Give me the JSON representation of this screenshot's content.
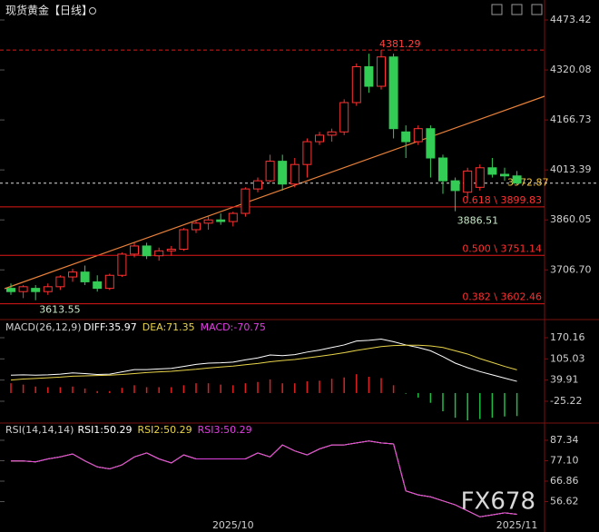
{
  "chart_data": [
    {
      "type": "candlestick",
      "title": "现货黄金【日线】",
      "categories": [
        null,
        null,
        null,
        null,
        null,
        null,
        null,
        null,
        null,
        null,
        null,
        null,
        null,
        null,
        null,
        null,
        null,
        null,
        "2025/10",
        null,
        null,
        null,
        null,
        null,
        null,
        null,
        null,
        null,
        null,
        null,
        null,
        null,
        null,
        null,
        null,
        null,
        null,
        null,
        null,
        null,
        null,
        "2025/11"
      ],
      "open": [
        3650,
        3640,
        3650,
        3640,
        3655,
        3685,
        3700,
        3670,
        3650,
        3690,
        3755,
        3780,
        3750,
        3765,
        3770,
        3830,
        3850,
        3860,
        3855,
        3880,
        3955,
        3980,
        4040,
        3970,
        4030,
        4100,
        4120,
        4130,
        4220,
        4330,
        4270,
        4360,
        4130,
        4100,
        4140,
        4050,
        3980,
        3945,
        3960,
        4020,
        4000,
        3995
      ],
      "high": [
        3665,
        3660,
        3660,
        3665,
        3690,
        3710,
        3720,
        3690,
        3695,
        3760,
        3790,
        3790,
        3775,
        3780,
        3835,
        3860,
        3870,
        3880,
        3885,
        3960,
        3990,
        4060,
        4060,
        4050,
        4110,
        4130,
        4140,
        4230,
        4340,
        4370,
        4381.29,
        4370,
        4150,
        4150,
        4150,
        4060,
        3990,
        4020,
        4030,
        4050,
        4020,
        4010
      ],
      "low": [
        3630,
        3620,
        3613.55,
        3630,
        3645,
        3670,
        3660,
        3640,
        3645,
        3685,
        3745,
        3740,
        3735,
        3750,
        3765,
        3820,
        3830,
        3845,
        3840,
        3870,
        3945,
        3975,
        3950,
        3960,
        3990,
        4090,
        4100,
        4120,
        4210,
        4250,
        4260,
        4110,
        4050,
        4090,
        3990,
        3940,
        3886.51,
        3925,
        3950,
        3990,
        3980,
        3965
      ],
      "close": [
        3640,
        3655,
        3640,
        3655,
        3685,
        3700,
        3670,
        3650,
        3690,
        3755,
        3780,
        3750,
        3765,
        3770,
        3830,
        3850,
        3860,
        3855,
        3880,
        3955,
        3980,
        4040,
        3970,
        4030,
        4100,
        4120,
        4130,
        4220,
        4330,
        4270,
        4360,
        4140,
        4100,
        4140,
        4050,
        3980,
        3950,
        4010,
        4020,
        4000,
        3995,
        3972.87
      ],
      "up_color": "#ff3333",
      "down_color": "#33cc55",
      "ylim": [
        3559.8,
        4534.7
      ],
      "yticks": [
        4473.42,
        4320.08,
        4166.73,
        4013.39,
        3860.05,
        {
          "value": 3706.7,
          "label": "3706.70"
        }
      ],
      "max_label": 4381.29,
      "min_label": 3613.55,
      "low_label": 3886.51,
      "last_price": 3972.87,
      "levels": [
        {
          "value": 3899.83,
          "label": "0.618 \\ 3899.83"
        },
        {
          "value": 3751.14,
          "label": "0.500 \\ 3751.14"
        },
        {
          "value": 3602.46,
          "label": "0.382 \\ 3602.46"
        }
      ]
    },
    {
      "type": "macd",
      "title": "MACD(26,12,9)",
      "series": [
        {
          "name": "DIFF:35.97",
          "color": "#ffffff",
          "values": [
            55,
            56,
            55,
            56,
            58,
            62,
            60,
            57,
            58,
            65,
            72,
            72,
            74,
            76,
            82,
            88,
            92,
            93,
            95,
            102,
            108,
            117,
            115,
            118,
            126,
            132,
            140,
            148,
            160,
            162,
            166,
            158,
            148,
            140,
            130,
            112,
            92,
            78,
            66,
            56,
            46,
            35.97
          ]
        },
        {
          "name": "DEA:71.35",
          "color": "#e8d44a",
          "values": [
            40,
            43,
            45,
            47,
            49,
            52,
            53,
            54,
            55,
            57,
            60,
            63,
            65,
            67,
            70,
            73,
            77,
            80,
            83,
            87,
            91,
            96,
            100,
            103,
            108,
            113,
            118,
            124,
            131,
            137,
            143,
            146,
            147,
            147,
            145,
            140,
            130,
            120,
            106,
            94,
            82,
            71.35
          ]
        }
      ],
      "histogram": {
        "name": "MACD:-70.75",
        "color": "#e040e0",
        "values": [
          30,
          26,
          20,
          18,
          18,
          20,
          14,
          6,
          6,
          16,
          24,
          18,
          18,
          18,
          24,
          30,
          30,
          26,
          24,
          30,
          34,
          42,
          30,
          30,
          36,
          38,
          44,
          48,
          58,
          50,
          46,
          24,
          -2,
          -14,
          -30,
          -56,
          -76,
          -84,
          -80,
          -76,
          -72,
          -70.75
        ]
      },
      "ylim": [
        -89.5,
        217.6
      ],
      "yticks": [
        170.16,
        105.03,
        39.91,
        -25.22
      ]
    },
    {
      "type": "line",
      "title": "RSI(14,14,14)",
      "series": [
        {
          "name": "RSI1:50.29",
          "color": "#ffffff",
          "values": [
            77,
            77,
            76.5,
            78,
            79,
            80.5,
            77,
            74,
            73,
            75,
            79,
            81,
            78,
            76,
            80,
            78,
            78,
            78,
            78,
            78,
            81,
            79,
            85,
            82,
            80,
            83,
            85,
            85,
            86,
            87,
            86,
            85.5,
            62,
            60,
            59,
            57,
            55,
            52,
            49,
            50,
            51,
            50.29
          ]
        },
        {
          "name": "RSI2:50.29",
          "color": "#e8d44a",
          "values": [
            77,
            77,
            76.5,
            78,
            79,
            80.5,
            77,
            74,
            73,
            75,
            79,
            81,
            78,
            76,
            80,
            78,
            78,
            78,
            78,
            78,
            81,
            79,
            85,
            82,
            80,
            83,
            85,
            85,
            86,
            87,
            86,
            85.5,
            62,
            60,
            59,
            57,
            55,
            52,
            49,
            50,
            51,
            50.29
          ]
        },
        {
          "name": "RSI3:50.29",
          "color": "#e040e0",
          "values": [
            77,
            77,
            76.5,
            78,
            79,
            80.5,
            77,
            74,
            73,
            75,
            79,
            81,
            78,
            76,
            80,
            78,
            78,
            78,
            78,
            78,
            81,
            79,
            85,
            82,
            80,
            83,
            85,
            85,
            86,
            87,
            86,
            85.5,
            62,
            60,
            59,
            57,
            55,
            52,
            49,
            50,
            51,
            50.29
          ]
        }
      ],
      "ylim": [
        46.4,
        95.5
      ],
      "yticks": [
        87.34,
        {
          "value": 77.1,
          "label": "77.10"
        },
        66.86,
        56.62
      ]
    }
  ],
  "watermark": "FX678"
}
